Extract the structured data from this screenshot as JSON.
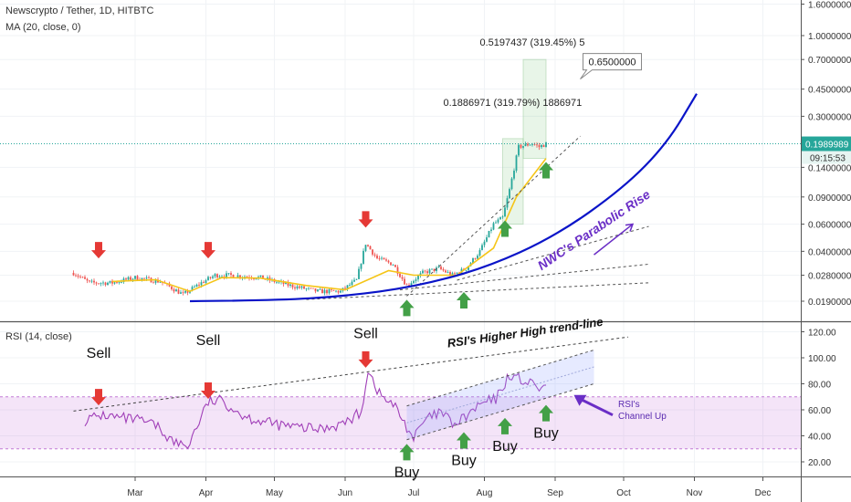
{
  "header": {
    "symbol_title": "Newscrypto / Tether, 1D, HITBTC",
    "ma_label": "MA (20, close, 0)",
    "rsi_label": "RSI (14, close)"
  },
  "price_axis": {
    "ticks": [
      "1.6000000",
      "1.0000000",
      "0.7000000",
      "0.4500000",
      "0.3000000",
      "0.1400000",
      "0.0900000",
      "0.0600000",
      "0.0400000",
      "0.0280000",
      "0.0190000"
    ],
    "tick_values": [
      1.6,
      1.0,
      0.7,
      0.45,
      0.3,
      0.14,
      0.09,
      0.06,
      0.04,
      0.028,
      0.019
    ],
    "scale": "log",
    "last_price_label": "0.1989989",
    "last_price": 0.1989989,
    "countdown": "09:15:53",
    "target_label": "0.6500000",
    "target_value": 0.65
  },
  "rsi_axis": {
    "ticks": [
      "120.00",
      "100.00",
      "80.00",
      "60.00",
      "40.00",
      "20.00"
    ],
    "tick_values": [
      120,
      100,
      80,
      60,
      40,
      20
    ],
    "band": [
      30,
      70
    ]
  },
  "time_axis": {
    "labels": [
      "Mar",
      "Apr",
      "May",
      "Jun",
      "Jul",
      "Aug",
      "Sep",
      "Oct",
      "Nov",
      "Dec"
    ],
    "start": "2020-02-02",
    "end": "2020-12-31"
  },
  "annotations": {
    "measure_1": "0.1886971 (319.79%) 1886971",
    "measure_2": "0.5197437 (319.45%) 5",
    "parabolic_label": "NWC's Parabolic Rise",
    "rsi_trend_label": "RSI's Higher High trend-line",
    "rsi_channel_label": [
      "RSI's",
      "Channel Up"
    ],
    "sell": "Sell",
    "buy": "Buy"
  },
  "colors": {
    "up": "#26a69a",
    "down": "#ef5350",
    "ma": "#f5c518",
    "rsi": "#a03fb8",
    "parabolic": "#0a14c8",
    "arrow_red": "#e53935",
    "arrow_green": "#43a047",
    "label_purple": "#6a2ec6",
    "price_line": "#26a69a"
  },
  "chart_data": [
    {
      "type": "candlestick",
      "title": "Newscrypto / Tether, 1D, HITBTC",
      "scale": "log",
      "x_unit": "date",
      "price_path": [
        [
          "2020-02-03",
          0.029
        ],
        [
          "2020-02-10",
          0.025
        ],
        [
          "2020-02-20",
          0.025
        ],
        [
          "2020-03-01",
          0.027
        ],
        [
          "2020-03-12",
          0.0255
        ],
        [
          "2020-03-22",
          0.021
        ],
        [
          "2020-03-30",
          0.025
        ],
        [
          "2020-04-05",
          0.028
        ],
        [
          "2020-04-12",
          0.028
        ],
        [
          "2020-04-25",
          0.027
        ],
        [
          "2020-05-08",
          0.024
        ],
        [
          "2020-05-20",
          0.022
        ],
        [
          "2020-05-30",
          0.022
        ],
        [
          "2020-06-06",
          0.026
        ],
        [
          "2020-06-10",
          0.045
        ],
        [
          "2020-06-15",
          0.036
        ],
        [
          "2020-06-22",
          0.033
        ],
        [
          "2020-06-28",
          0.024
        ],
        [
          "2020-07-05",
          0.029
        ],
        [
          "2020-07-12",
          0.031
        ],
        [
          "2020-07-18",
          0.028
        ],
        [
          "2020-07-24",
          0.031
        ],
        [
          "2020-07-30",
          0.04
        ],
        [
          "2020-08-05",
          0.06
        ],
        [
          "2020-08-09",
          0.066
        ],
        [
          "2020-08-12",
          0.1
        ],
        [
          "2020-08-16",
          0.19
        ],
        [
          "2020-08-22",
          0.2
        ],
        [
          "2020-08-25",
          0.19
        ],
        [
          "2020-08-28",
          0.199
        ]
      ],
      "ma20_path": [
        [
          "2020-02-20",
          0.0255
        ],
        [
          "2020-03-10",
          0.0262
        ],
        [
          "2020-03-25",
          0.022
        ],
        [
          "2020-04-08",
          0.027
        ],
        [
          "2020-04-25",
          0.0268
        ],
        [
          "2020-05-15",
          0.024
        ],
        [
          "2020-06-01",
          0.0225
        ],
        [
          "2020-06-20",
          0.03
        ],
        [
          "2020-07-01",
          0.028
        ],
        [
          "2020-07-20",
          0.028
        ],
        [
          "2020-08-05",
          0.042
        ],
        [
          "2020-08-15",
          0.09
        ],
        [
          "2020-08-28",
          0.16
        ]
      ],
      "parabolic_curve": [
        [
          "2020-03-25",
          0.019
        ],
        [
          "2020-05-01",
          0.0192
        ],
        [
          "2020-06-01",
          0.0205
        ],
        [
          "2020-07-01",
          0.0235
        ],
        [
          "2020-08-01",
          0.031
        ],
        [
          "2020-09-01",
          0.05
        ],
        [
          "2020-10-01",
          0.103
        ],
        [
          "2020-10-20",
          0.2
        ],
        [
          "2020-11-02",
          0.42
        ]
      ],
      "sell_signals": [
        "2020-02-14",
        "2020-04-02",
        "2020-06-10"
      ],
      "buy_signals": [
        "2020-06-28",
        "2020-07-23",
        "2020-08-10",
        "2020-08-28"
      ],
      "measure_box_1": {
        "from": "2020-08-09",
        "to": "2020-08-18",
        "low": 0.06,
        "high": 0.215
      },
      "measure_box_2": {
        "from": "2020-08-18",
        "to": "2020-08-28",
        "low": 0.16,
        "high": 0.7
      }
    },
    {
      "type": "line",
      "title": "RSI (14, close)",
      "x_unit": "date",
      "ylim": [
        20,
        120
      ],
      "band": [
        30,
        70
      ],
      "rsi_path": [
        [
          "2020-02-08",
          52
        ],
        [
          "2020-02-16",
          56
        ],
        [
          "2020-02-22",
          54
        ],
        [
          "2020-03-02",
          52
        ],
        [
          "2020-03-10",
          48
        ],
        [
          "2020-03-18",
          35
        ],
        [
          "2020-03-24",
          32
        ],
        [
          "2020-04-02",
          66
        ],
        [
          "2020-04-08",
          67
        ],
        [
          "2020-04-18",
          55
        ],
        [
          "2020-04-28",
          50
        ],
        [
          "2020-05-08",
          47
        ],
        [
          "2020-05-20",
          45
        ],
        [
          "2020-06-01",
          50
        ],
        [
          "2020-06-08",
          58
        ],
        [
          "2020-06-11",
          91
        ],
        [
          "2020-06-16",
          72
        ],
        [
          "2020-06-23",
          62
        ],
        [
          "2020-07-01",
          38
        ],
        [
          "2020-07-06",
          52
        ],
        [
          "2020-07-13",
          58
        ],
        [
          "2020-07-19",
          48
        ],
        [
          "2020-07-24",
          55
        ],
        [
          "2020-07-31",
          65
        ],
        [
          "2020-08-06",
          68
        ],
        [
          "2020-08-12",
          87
        ],
        [
          "2020-08-17",
          83
        ],
        [
          "2020-08-22",
          79
        ],
        [
          "2020-08-28",
          75
        ]
      ],
      "higher_high_line": [
        [
          "2020-02-03",
          59
        ],
        [
          "2020-10-03",
          116
        ]
      ],
      "channel_upper": [
        [
          "2020-06-28",
          63
        ],
        [
          "2020-09-18",
          106
        ]
      ],
      "channel_lower": [
        [
          "2020-06-28",
          37
        ],
        [
          "2020-09-18",
          80
        ]
      ]
    }
  ]
}
